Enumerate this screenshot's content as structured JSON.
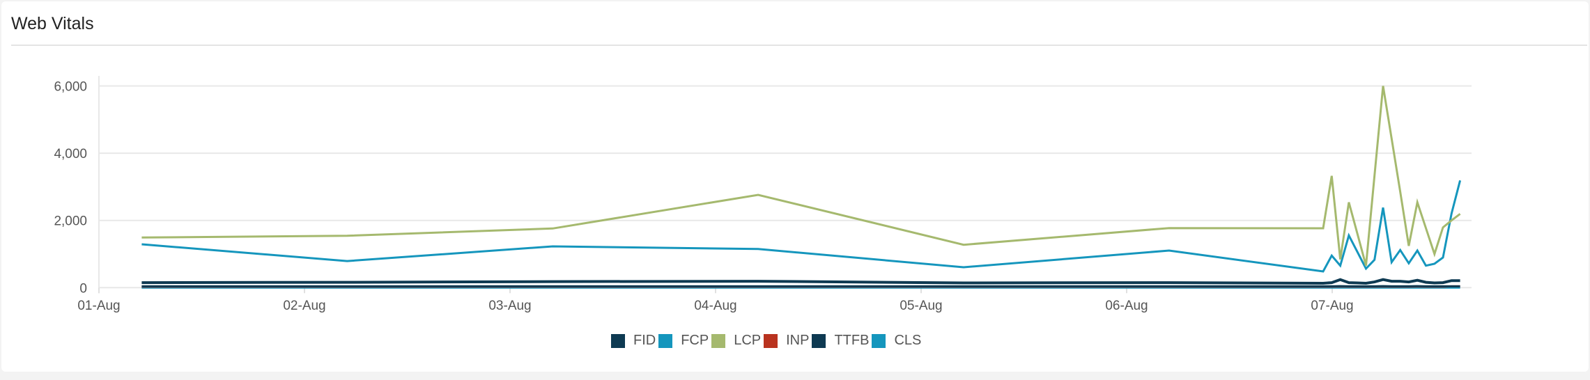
{
  "card": {
    "title": "Web Vitals"
  },
  "chart_data": {
    "type": "line",
    "title": "",
    "xlabel": "",
    "ylabel": "",
    "xlim": [
      "01-Aug 00:00",
      "07-Aug 16:20"
    ],
    "ylim": [
      0,
      6300
    ],
    "yticks": [
      0,
      2000,
      4000,
      6000
    ],
    "ytick_labels": [
      "0",
      "2,000",
      "4,000",
      "6,000"
    ],
    "xtick_labels": [
      "01-Aug",
      "02-Aug",
      "03-Aug",
      "04-Aug",
      "05-Aug",
      "06-Aug",
      "07-Aug"
    ],
    "grid": true,
    "legend_position": "bottom",
    "x": [
      "01-Aug 05:00",
      "02-Aug 05:00",
      "03-Aug 05:00",
      "04-Aug 05:00",
      "05-Aug 05:00",
      "06-Aug 05:00",
      "06-Aug 23:00",
      "07-Aug 00:00",
      "07-Aug 01:00",
      "07-Aug 02:00",
      "07-Aug 03:00",
      "07-Aug 04:00",
      "07-Aug 05:00",
      "07-Aug 06:00",
      "07-Aug 07:00",
      "07-Aug 08:00",
      "07-Aug 09:00",
      "07-Aug 10:00",
      "07-Aug 11:00",
      "07-Aug 12:00",
      "07-Aug 13:00",
      "07-Aug 14:00",
      "07-Aug 15:00"
    ],
    "series": [
      {
        "name": "FID",
        "color": "#0e3a52",
        "values": [
          40,
          40,
          40,
          40,
          40,
          40,
          40,
          40,
          45,
          40,
          40,
          40,
          40,
          45,
          40,
          40,
          40,
          45,
          40,
          40,
          40,
          40,
          40
        ]
      },
      {
        "name": "FCP",
        "color": "#1596bd",
        "values": [
          1290,
          790,
          1228,
          1150,
          607,
          1103,
          482,
          952,
          655,
          1553,
          1060,
          565,
          828,
          2381,
          758,
          1118,
          725,
          1103,
          655,
          710,
          897,
          2207,
          3188
        ]
      },
      {
        "name": "LCP",
        "color": "#a5b96e",
        "values": [
          1490,
          1545,
          1760,
          2760,
          1275,
          1772,
          1765,
          3325,
          840,
          2538,
          1600,
          655,
          3330,
          6000,
          4430,
          2857,
          1242,
          2538,
          1770,
          1000,
          1793,
          2000,
          2195
        ]
      },
      {
        "name": "INP",
        "color": "#b9331f",
        "values": [
          30,
          30,
          30,
          30,
          30,
          30,
          30,
          30,
          35,
          30,
          30,
          30,
          30,
          35,
          30,
          30,
          30,
          35,
          30,
          30,
          30,
          40,
          40
        ]
      },
      {
        "name": "TTFB",
        "color": "#0e3a52",
        "values": [
          150,
          160,
          180,
          190,
          140,
          150,
          130,
          150,
          240,
          150,
          140,
          130,
          170,
          240,
          190,
          190,
          170,
          220,
          160,
          140,
          150,
          210,
          210
        ]
      },
      {
        "name": "CLS",
        "color": "#1596bd",
        "values": [
          0,
          0,
          0,
          0,
          0,
          0,
          0,
          0,
          0,
          0,
          0,
          0,
          0,
          0,
          0,
          0,
          0,
          0,
          0,
          0,
          0,
          0,
          0
        ]
      }
    ]
  }
}
